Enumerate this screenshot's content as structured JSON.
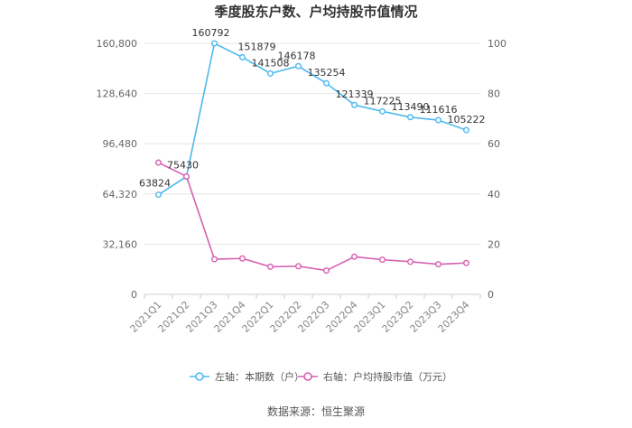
{
  "chart_data": {
    "type": "line",
    "title": "季度股东户数、户均持股市值情况",
    "categories": [
      "2021Q1",
      "2021Q2",
      "2021Q3",
      "2021Q4",
      "2022Q1",
      "2022Q2",
      "2022Q3",
      "2022Q4",
      "2023Q1",
      "2023Q2",
      "2023Q3",
      "2023Q4"
    ],
    "left_axis": {
      "min": 0,
      "max": 160800,
      "ticks": [
        0,
        32160,
        64320,
        96480,
        128640,
        160800
      ],
      "tick_labels": [
        "0",
        "32,160",
        "64,320",
        "96,480",
        "128,640",
        "160,800"
      ]
    },
    "right_axis": {
      "min": 0,
      "max": 100,
      "ticks": [
        0,
        20,
        40,
        60,
        80,
        100
      ],
      "tick_labels": [
        "0",
        "20",
        "40",
        "60",
        "80",
        "100"
      ]
    },
    "series": [
      {
        "name": "左轴：本期数（户）",
        "axis": "left",
        "color": "#4db8ee",
        "values": [
          63824,
          75430,
          160792,
          151879,
          141508,
          146178,
          135254,
          121339,
          117225,
          113490,
          111616,
          105222
        ],
        "labels": [
          "63824",
          "75430",
          "160792",
          "151879",
          "141508",
          "146178",
          "135254",
          "121339",
          "117225",
          "113490",
          "111616",
          "105222"
        ]
      },
      {
        "name": "右轴：户均持股市值（万元）",
        "axis": "right",
        "color": "#d65fb0",
        "values": [
          52.5,
          47,
          14,
          14.3,
          11,
          11.2,
          9.5,
          15,
          13.8,
          13,
          12,
          12.5
        ]
      }
    ],
    "grid": true,
    "legend": "bottom",
    "source": "数据来源：恒生聚源"
  }
}
